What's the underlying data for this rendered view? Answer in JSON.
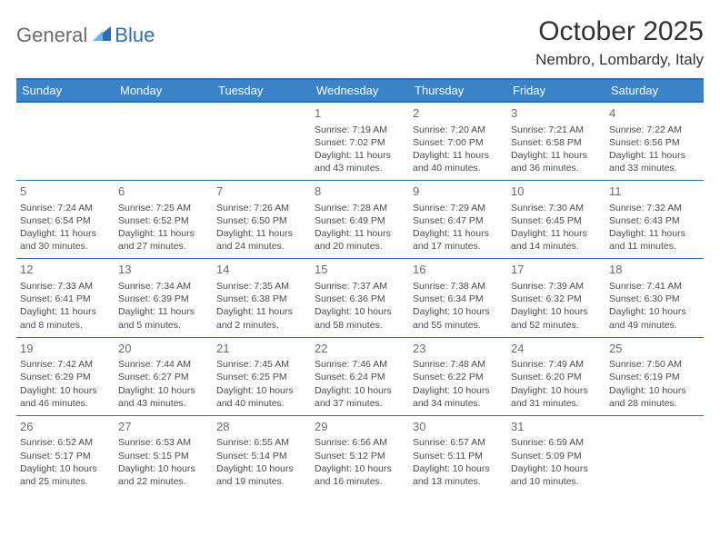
{
  "logo": {
    "general": "General",
    "blue": "Blue"
  },
  "title": "October 2025",
  "location": "Nembro, Lombardy, Italy",
  "colors": {
    "header_bg": "#3b83c7",
    "header_border": "#2a6fb5",
    "row_border": "#2a6fb5",
    "text": "#333333",
    "cell_text": "#4a4a4a",
    "daynum": "#6b6b6b",
    "logo_grey": "#6b6b6b",
    "logo_blue": "#2a6fb5",
    "background": "#ffffff"
  },
  "typography": {
    "title_fontsize": 30,
    "location_fontsize": 17,
    "header_fontsize": 13,
    "daynum_fontsize": 13,
    "cell_fontsize": 10.5
  },
  "weekday_headers": [
    "Sunday",
    "Monday",
    "Tuesday",
    "Wednesday",
    "Thursday",
    "Friday",
    "Saturday"
  ],
  "first_weekday_index": 3,
  "days": [
    {
      "n": 1,
      "sunrise": "7:19 AM",
      "sunset": "7:02 PM",
      "daylight": "11 hours and 43 minutes."
    },
    {
      "n": 2,
      "sunrise": "7:20 AM",
      "sunset": "7:00 PM",
      "daylight": "11 hours and 40 minutes."
    },
    {
      "n": 3,
      "sunrise": "7:21 AM",
      "sunset": "6:58 PM",
      "daylight": "11 hours and 36 minutes."
    },
    {
      "n": 4,
      "sunrise": "7:22 AM",
      "sunset": "6:56 PM",
      "daylight": "11 hours and 33 minutes."
    },
    {
      "n": 5,
      "sunrise": "7:24 AM",
      "sunset": "6:54 PM",
      "daylight": "11 hours and 30 minutes."
    },
    {
      "n": 6,
      "sunrise": "7:25 AM",
      "sunset": "6:52 PM",
      "daylight": "11 hours and 27 minutes."
    },
    {
      "n": 7,
      "sunrise": "7:26 AM",
      "sunset": "6:50 PM",
      "daylight": "11 hours and 24 minutes."
    },
    {
      "n": 8,
      "sunrise": "7:28 AM",
      "sunset": "6:49 PM",
      "daylight": "11 hours and 20 minutes."
    },
    {
      "n": 9,
      "sunrise": "7:29 AM",
      "sunset": "6:47 PM",
      "daylight": "11 hours and 17 minutes."
    },
    {
      "n": 10,
      "sunrise": "7:30 AM",
      "sunset": "6:45 PM",
      "daylight": "11 hours and 14 minutes."
    },
    {
      "n": 11,
      "sunrise": "7:32 AM",
      "sunset": "6:43 PM",
      "daylight": "11 hours and 11 minutes."
    },
    {
      "n": 12,
      "sunrise": "7:33 AM",
      "sunset": "6:41 PM",
      "daylight": "11 hours and 8 minutes."
    },
    {
      "n": 13,
      "sunrise": "7:34 AM",
      "sunset": "6:39 PM",
      "daylight": "11 hours and 5 minutes."
    },
    {
      "n": 14,
      "sunrise": "7:35 AM",
      "sunset": "6:38 PM",
      "daylight": "11 hours and 2 minutes."
    },
    {
      "n": 15,
      "sunrise": "7:37 AM",
      "sunset": "6:36 PM",
      "daylight": "10 hours and 58 minutes."
    },
    {
      "n": 16,
      "sunrise": "7:38 AM",
      "sunset": "6:34 PM",
      "daylight": "10 hours and 55 minutes."
    },
    {
      "n": 17,
      "sunrise": "7:39 AM",
      "sunset": "6:32 PM",
      "daylight": "10 hours and 52 minutes."
    },
    {
      "n": 18,
      "sunrise": "7:41 AM",
      "sunset": "6:30 PM",
      "daylight": "10 hours and 49 minutes."
    },
    {
      "n": 19,
      "sunrise": "7:42 AM",
      "sunset": "6:29 PM",
      "daylight": "10 hours and 46 minutes."
    },
    {
      "n": 20,
      "sunrise": "7:44 AM",
      "sunset": "6:27 PM",
      "daylight": "10 hours and 43 minutes."
    },
    {
      "n": 21,
      "sunrise": "7:45 AM",
      "sunset": "6:25 PM",
      "daylight": "10 hours and 40 minutes."
    },
    {
      "n": 22,
      "sunrise": "7:46 AM",
      "sunset": "6:24 PM",
      "daylight": "10 hours and 37 minutes."
    },
    {
      "n": 23,
      "sunrise": "7:48 AM",
      "sunset": "6:22 PM",
      "daylight": "10 hours and 34 minutes."
    },
    {
      "n": 24,
      "sunrise": "7:49 AM",
      "sunset": "6:20 PM",
      "daylight": "10 hours and 31 minutes."
    },
    {
      "n": 25,
      "sunrise": "7:50 AM",
      "sunset": "6:19 PM",
      "daylight": "10 hours and 28 minutes."
    },
    {
      "n": 26,
      "sunrise": "6:52 AM",
      "sunset": "5:17 PM",
      "daylight": "10 hours and 25 minutes."
    },
    {
      "n": 27,
      "sunrise": "6:53 AM",
      "sunset": "5:15 PM",
      "daylight": "10 hours and 22 minutes."
    },
    {
      "n": 28,
      "sunrise": "6:55 AM",
      "sunset": "5:14 PM",
      "daylight": "10 hours and 19 minutes."
    },
    {
      "n": 29,
      "sunrise": "6:56 AM",
      "sunset": "5:12 PM",
      "daylight": "10 hours and 16 minutes."
    },
    {
      "n": 30,
      "sunrise": "6:57 AM",
      "sunset": "5:11 PM",
      "daylight": "10 hours and 13 minutes."
    },
    {
      "n": 31,
      "sunrise": "6:59 AM",
      "sunset": "5:09 PM",
      "daylight": "10 hours and 10 minutes."
    }
  ],
  "labels": {
    "sunrise": "Sunrise:",
    "sunset": "Sunset:",
    "daylight": "Daylight:"
  }
}
